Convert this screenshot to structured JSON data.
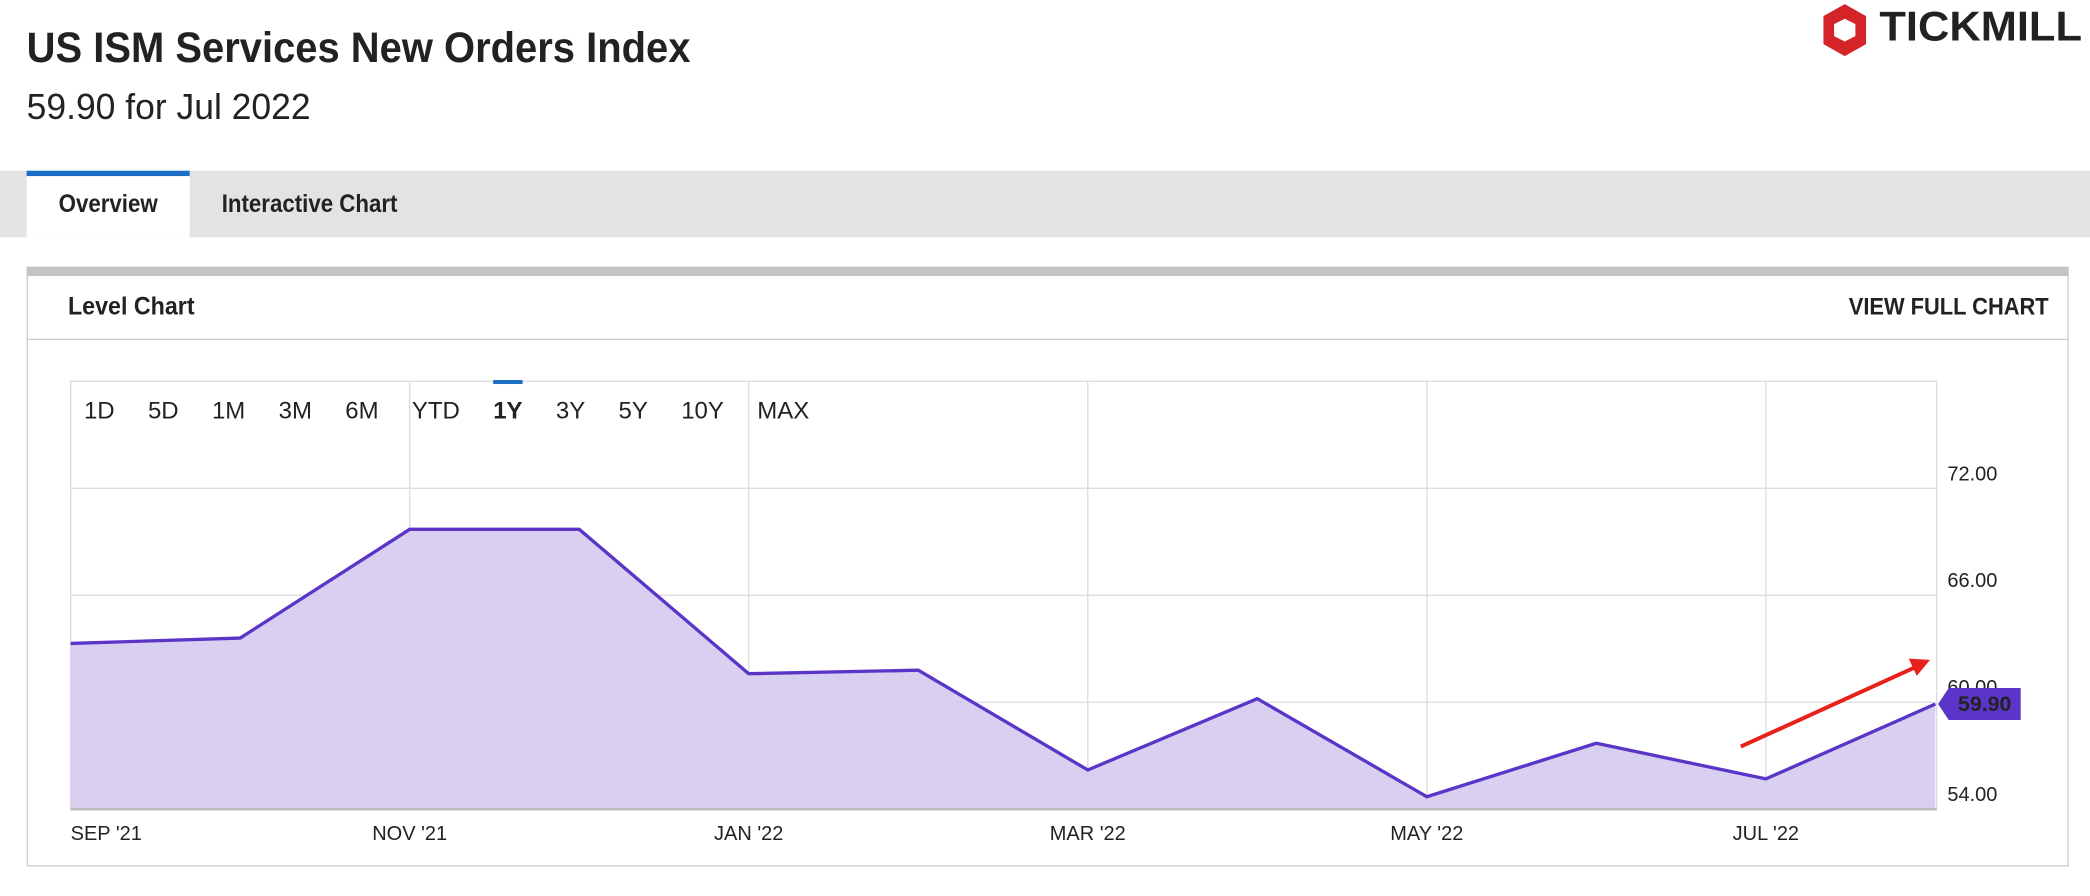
{
  "header": {
    "title": "US ISM Services New Orders Index",
    "subtitle": "59.90 for Jul 2022",
    "logo": "TICKMILL"
  },
  "tabs": {
    "items": [
      "Overview",
      "Interactive Chart"
    ],
    "active": 0
  },
  "card": {
    "title": "Level Chart",
    "link": "VIEW FULL CHART"
  },
  "ranges": {
    "items": [
      "1D",
      "5D",
      "1M",
      "3M",
      "6M",
      "YTD",
      "1Y",
      "3Y",
      "5Y",
      "10Y",
      "MAX"
    ],
    "active": 6
  },
  "chart_data": {
    "type": "area",
    "categories": [
      "SEP '21",
      null,
      "NOV '21",
      null,
      "JAN '22",
      null,
      "MAR '22",
      null,
      "MAY '22",
      null,
      "JUL '22",
      null
    ],
    "values": [
      63.3,
      63.6,
      69.7,
      69.7,
      61.6,
      61.8,
      56.2,
      60.2,
      54.7,
      57.7,
      55.7,
      59.9
    ],
    "value_labels": [
      null,
      null,
      null,
      null,
      null,
      null,
      null,
      null,
      null,
      null,
      null,
      "59.90"
    ],
    "color": "#5a35c8",
    "fill": "#d5caef",
    "ylim": [
      54,
      78
    ],
    "yticks": [
      {
        "value": 54,
        "label": "54.00"
      },
      {
        "value": 60,
        "label": "60.00"
      },
      {
        "value": 66,
        "label": "66.00"
      },
      {
        "value": 72,
        "label": "72.00"
      }
    ],
    "grid": true
  }
}
